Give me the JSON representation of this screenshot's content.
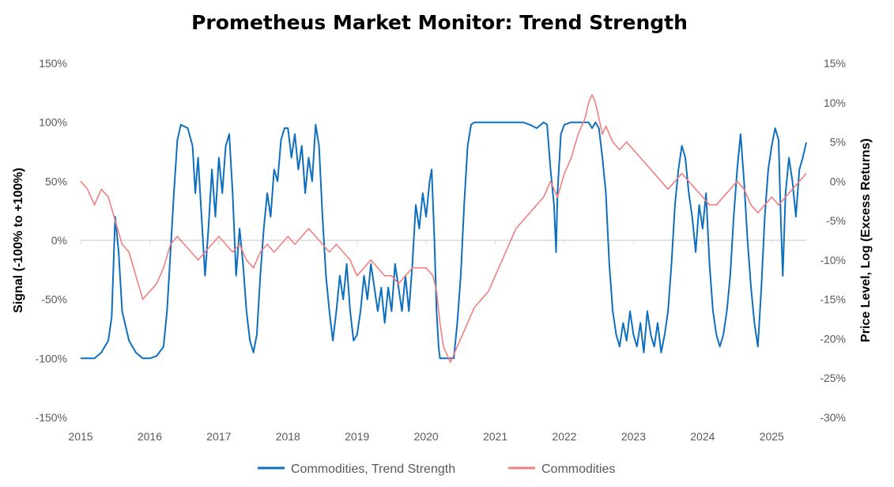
{
  "chart_data": {
    "type": "line",
    "title": "Prometheus Market Monitor: Trend Strength",
    "ylabel_left": "Signal (-100% to +100%)",
    "ylabel_right": "Price Level, Log (Excess Returns)",
    "x_range": [
      2015.0,
      2025.5
    ],
    "y_left_range": [
      -150,
      150
    ],
    "y_right_range": [
      -30,
      15
    ],
    "x_ticks": [
      "2015",
      "2016",
      "2017",
      "2018",
      "2019",
      "2020",
      "2021",
      "2022",
      "2023",
      "2024",
      "2025"
    ],
    "y_left_ticks": [
      "-150%",
      "-100%",
      "-50%",
      "0%",
      "50%",
      "100%",
      "150%"
    ],
    "y_right_ticks": [
      "-30%",
      "-25%",
      "-20%",
      "-15%",
      "-10%",
      "-5%",
      "0%",
      "5%",
      "10%",
      "15%"
    ],
    "zero_line": true,
    "legend_position": "bottom",
    "series": [
      {
        "name": "Commodities, Trend Strength",
        "axis": "left",
        "color": "#0F6FBF",
        "points": [
          [
            2015.0,
            -100
          ],
          [
            2015.2,
            -100
          ],
          [
            2015.3,
            -95
          ],
          [
            2015.4,
            -85
          ],
          [
            2015.45,
            -65
          ],
          [
            2015.5,
            20
          ],
          [
            2015.55,
            -10
          ],
          [
            2015.6,
            -60
          ],
          [
            2015.7,
            -85
          ],
          [
            2015.8,
            -95
          ],
          [
            2015.9,
            -100
          ],
          [
            2016.0,
            -100
          ],
          [
            2016.1,
            -98
          ],
          [
            2016.2,
            -90
          ],
          [
            2016.25,
            -60
          ],
          [
            2016.3,
            -10
          ],
          [
            2016.35,
            40
          ],
          [
            2016.4,
            85
          ],
          [
            2016.45,
            98
          ],
          [
            2016.55,
            95
          ],
          [
            2016.62,
            80
          ],
          [
            2016.66,
            40
          ],
          [
            2016.7,
            70
          ],
          [
            2016.75,
            20
          ],
          [
            2016.8,
            -30
          ],
          [
            2016.85,
            10
          ],
          [
            2016.9,
            60
          ],
          [
            2016.95,
            20
          ],
          [
            2017.0,
            70
          ],
          [
            2017.05,
            40
          ],
          [
            2017.1,
            80
          ],
          [
            2017.15,
            90
          ],
          [
            2017.2,
            40
          ],
          [
            2017.25,
            -30
          ],
          [
            2017.3,
            10
          ],
          [
            2017.35,
            -20
          ],
          [
            2017.4,
            -60
          ],
          [
            2017.45,
            -85
          ],
          [
            2017.5,
            -95
          ],
          [
            2017.55,
            -80
          ],
          [
            2017.6,
            -30
          ],
          [
            2017.65,
            10
          ],
          [
            2017.7,
            40
          ],
          [
            2017.75,
            20
          ],
          [
            2017.8,
            60
          ],
          [
            2017.85,
            50
          ],
          [
            2017.9,
            85
          ],
          [
            2017.95,
            95
          ],
          [
            2018.0,
            95
          ],
          [
            2018.05,
            70
          ],
          [
            2018.1,
            90
          ],
          [
            2018.15,
            60
          ],
          [
            2018.2,
            80
          ],
          [
            2018.25,
            40
          ],
          [
            2018.3,
            70
          ],
          [
            2018.35,
            50
          ],
          [
            2018.4,
            98
          ],
          [
            2018.45,
            80
          ],
          [
            2018.5,
            20
          ],
          [
            2018.55,
            -30
          ],
          [
            2018.6,
            -60
          ],
          [
            2018.65,
            -85
          ],
          [
            2018.7,
            -60
          ],
          [
            2018.75,
            -30
          ],
          [
            2018.8,
            -50
          ],
          [
            2018.85,
            -20
          ],
          [
            2018.9,
            -60
          ],
          [
            2018.95,
            -85
          ],
          [
            2019.0,
            -80
          ],
          [
            2019.05,
            -60
          ],
          [
            2019.1,
            -30
          ],
          [
            2019.15,
            -50
          ],
          [
            2019.2,
            -20
          ],
          [
            2019.25,
            -40
          ],
          [
            2019.3,
            -60
          ],
          [
            2019.35,
            -40
          ],
          [
            2019.4,
            -70
          ],
          [
            2019.45,
            -40
          ],
          [
            2019.5,
            -60
          ],
          [
            2019.55,
            -20
          ],
          [
            2019.6,
            -40
          ],
          [
            2019.65,
            -60
          ],
          [
            2019.7,
            -30
          ],
          [
            2019.75,
            -60
          ],
          [
            2019.8,
            -20
          ],
          [
            2019.85,
            30
          ],
          [
            2019.9,
            10
          ],
          [
            2019.95,
            40
          ],
          [
            2020.0,
            20
          ],
          [
            2020.05,
            50
          ],
          [
            2020.08,
            60
          ],
          [
            2020.12,
            0
          ],
          [
            2020.15,
            -60
          ],
          [
            2020.18,
            -90
          ],
          [
            2020.2,
            -100
          ],
          [
            2020.3,
            -100
          ],
          [
            2020.4,
            -100
          ],
          [
            2020.45,
            -70
          ],
          [
            2020.5,
            -30
          ],
          [
            2020.55,
            30
          ],
          [
            2020.6,
            80
          ],
          [
            2020.65,
            98
          ],
          [
            2020.7,
            100
          ],
          [
            2021.0,
            100
          ],
          [
            2021.4,
            100
          ],
          [
            2021.5,
            98
          ],
          [
            2021.6,
            95
          ],
          [
            2021.7,
            100
          ],
          [
            2021.75,
            98
          ],
          [
            2021.8,
            60
          ],
          [
            2021.85,
            30
          ],
          [
            2021.88,
            -10
          ],
          [
            2021.9,
            40
          ],
          [
            2021.95,
            90
          ],
          [
            2022.0,
            98
          ],
          [
            2022.1,
            100
          ],
          [
            2022.2,
            100
          ],
          [
            2022.3,
            100
          ],
          [
            2022.35,
            100
          ],
          [
            2022.4,
            95
          ],
          [
            2022.45,
            100
          ],
          [
            2022.5,
            95
          ],
          [
            2022.55,
            70
          ],
          [
            2022.6,
            40
          ],
          [
            2022.65,
            -20
          ],
          [
            2022.7,
            -60
          ],
          [
            2022.75,
            -80
          ],
          [
            2022.8,
            -90
          ],
          [
            2022.85,
            -70
          ],
          [
            2022.9,
            -85
          ],
          [
            2022.95,
            -60
          ],
          [
            2023.0,
            -80
          ],
          [
            2023.05,
            -90
          ],
          [
            2023.1,
            -70
          ],
          [
            2023.15,
            -95
          ],
          [
            2023.2,
            -60
          ],
          [
            2023.25,
            -80
          ],
          [
            2023.3,
            -90
          ],
          [
            2023.35,
            -70
          ],
          [
            2023.4,
            -95
          ],
          [
            2023.45,
            -80
          ],
          [
            2023.5,
            -60
          ],
          [
            2023.55,
            -20
          ],
          [
            2023.6,
            30
          ],
          [
            2023.65,
            60
          ],
          [
            2023.7,
            80
          ],
          [
            2023.75,
            70
          ],
          [
            2023.8,
            40
          ],
          [
            2023.85,
            20
          ],
          [
            2023.9,
            -10
          ],
          [
            2023.95,
            30
          ],
          [
            2024.0,
            10
          ],
          [
            2024.05,
            40
          ],
          [
            2024.1,
            -20
          ],
          [
            2024.15,
            -60
          ],
          [
            2024.2,
            -80
          ],
          [
            2024.25,
            -90
          ],
          [
            2024.3,
            -80
          ],
          [
            2024.35,
            -60
          ],
          [
            2024.4,
            -30
          ],
          [
            2024.45,
            20
          ],
          [
            2024.5,
            60
          ],
          [
            2024.55,
            90
          ],
          [
            2024.6,
            50
          ],
          [
            2024.65,
            0
          ],
          [
            2024.7,
            -40
          ],
          [
            2024.75,
            -70
          ],
          [
            2024.8,
            -90
          ],
          [
            2024.85,
            -40
          ],
          [
            2024.9,
            20
          ],
          [
            2024.95,
            60
          ],
          [
            2025.0,
            80
          ],
          [
            2025.05,
            95
          ],
          [
            2025.1,
            85
          ],
          [
            2025.13,
            20
          ],
          [
            2025.16,
            -30
          ],
          [
            2025.2,
            40
          ],
          [
            2025.25,
            70
          ],
          [
            2025.3,
            50
          ],
          [
            2025.35,
            20
          ],
          [
            2025.4,
            60
          ],
          [
            2025.45,
            70
          ],
          [
            2025.5,
            83
          ]
        ]
      },
      {
        "name": "Commodities",
        "axis": "right",
        "color": "#F08080",
        "points": [
          [
            2015.0,
            0
          ],
          [
            2015.1,
            -1
          ],
          [
            2015.2,
            -3
          ],
          [
            2015.3,
            -1
          ],
          [
            2015.4,
            -2
          ],
          [
            2015.5,
            -5
          ],
          [
            2015.6,
            -8
          ],
          [
            2015.7,
            -9
          ],
          [
            2015.8,
            -12
          ],
          [
            2015.9,
            -15
          ],
          [
            2016.0,
            -14
          ],
          [
            2016.1,
            -13
          ],
          [
            2016.2,
            -11
          ],
          [
            2016.3,
            -8
          ],
          [
            2016.4,
            -7
          ],
          [
            2016.5,
            -8
          ],
          [
            2016.6,
            -9
          ],
          [
            2016.7,
            -10
          ],
          [
            2016.8,
            -9
          ],
          [
            2016.9,
            -8
          ],
          [
            2017.0,
            -7
          ],
          [
            2017.1,
            -8
          ],
          [
            2017.2,
            -9
          ],
          [
            2017.3,
            -8
          ],
          [
            2017.4,
            -10
          ],
          [
            2017.5,
            -11
          ],
          [
            2017.6,
            -9
          ],
          [
            2017.7,
            -8
          ],
          [
            2017.8,
            -9
          ],
          [
            2017.9,
            -8
          ],
          [
            2018.0,
            -7
          ],
          [
            2018.1,
            -8
          ],
          [
            2018.2,
            -7
          ],
          [
            2018.3,
            -6
          ],
          [
            2018.4,
            -7
          ],
          [
            2018.5,
            -8
          ],
          [
            2018.6,
            -9
          ],
          [
            2018.7,
            -8
          ],
          [
            2018.8,
            -9
          ],
          [
            2018.9,
            -10
          ],
          [
            2019.0,
            -12
          ],
          [
            2019.1,
            -11
          ],
          [
            2019.2,
            -10
          ],
          [
            2019.3,
            -11
          ],
          [
            2019.4,
            -12
          ],
          [
            2019.5,
            -12
          ],
          [
            2019.6,
            -13
          ],
          [
            2019.7,
            -12
          ],
          [
            2019.8,
            -11
          ],
          [
            2019.9,
            -11
          ],
          [
            2020.0,
            -11
          ],
          [
            2020.1,
            -12
          ],
          [
            2020.15,
            -14
          ],
          [
            2020.2,
            -18
          ],
          [
            2020.25,
            -21
          ],
          [
            2020.3,
            -22
          ],
          [
            2020.35,
            -23
          ],
          [
            2020.4,
            -22
          ],
          [
            2020.45,
            -21
          ],
          [
            2020.5,
            -20
          ],
          [
            2020.6,
            -18
          ],
          [
            2020.7,
            -16
          ],
          [
            2020.8,
            -15
          ],
          [
            2020.9,
            -14
          ],
          [
            2021.0,
            -12
          ],
          [
            2021.1,
            -10
          ],
          [
            2021.2,
            -8
          ],
          [
            2021.3,
            -6
          ],
          [
            2021.4,
            -5
          ],
          [
            2021.5,
            -4
          ],
          [
            2021.6,
            -3
          ],
          [
            2021.7,
            -2
          ],
          [
            2021.8,
            0
          ],
          [
            2021.9,
            -2
          ],
          [
            2022.0,
            1
          ],
          [
            2022.1,
            3
          ],
          [
            2022.2,
            6
          ],
          [
            2022.3,
            8
          ],
          [
            2022.35,
            10
          ],
          [
            2022.4,
            11
          ],
          [
            2022.45,
            10
          ],
          [
            2022.5,
            8
          ],
          [
            2022.55,
            6
          ],
          [
            2022.6,
            7
          ],
          [
            2022.7,
            5
          ],
          [
            2022.8,
            4
          ],
          [
            2022.9,
            5
          ],
          [
            2023.0,
            4
          ],
          [
            2023.1,
            3
          ],
          [
            2023.2,
            2
          ],
          [
            2023.3,
            1
          ],
          [
            2023.4,
            0
          ],
          [
            2023.5,
            -1
          ],
          [
            2023.6,
            0
          ],
          [
            2023.7,
            1
          ],
          [
            2023.8,
            0
          ],
          [
            2023.9,
            -1
          ],
          [
            2024.0,
            -2
          ],
          [
            2024.1,
            -3
          ],
          [
            2024.2,
            -3
          ],
          [
            2024.3,
            -2
          ],
          [
            2024.4,
            -1
          ],
          [
            2024.5,
            0
          ],
          [
            2024.6,
            -1
          ],
          [
            2024.7,
            -3
          ],
          [
            2024.8,
            -4
          ],
          [
            2024.9,
            -3
          ],
          [
            2025.0,
            -2
          ],
          [
            2025.1,
            -3
          ],
          [
            2025.2,
            -2
          ],
          [
            2025.3,
            -1
          ],
          [
            2025.4,
            0
          ],
          [
            2025.5,
            1
          ]
        ]
      }
    ]
  }
}
